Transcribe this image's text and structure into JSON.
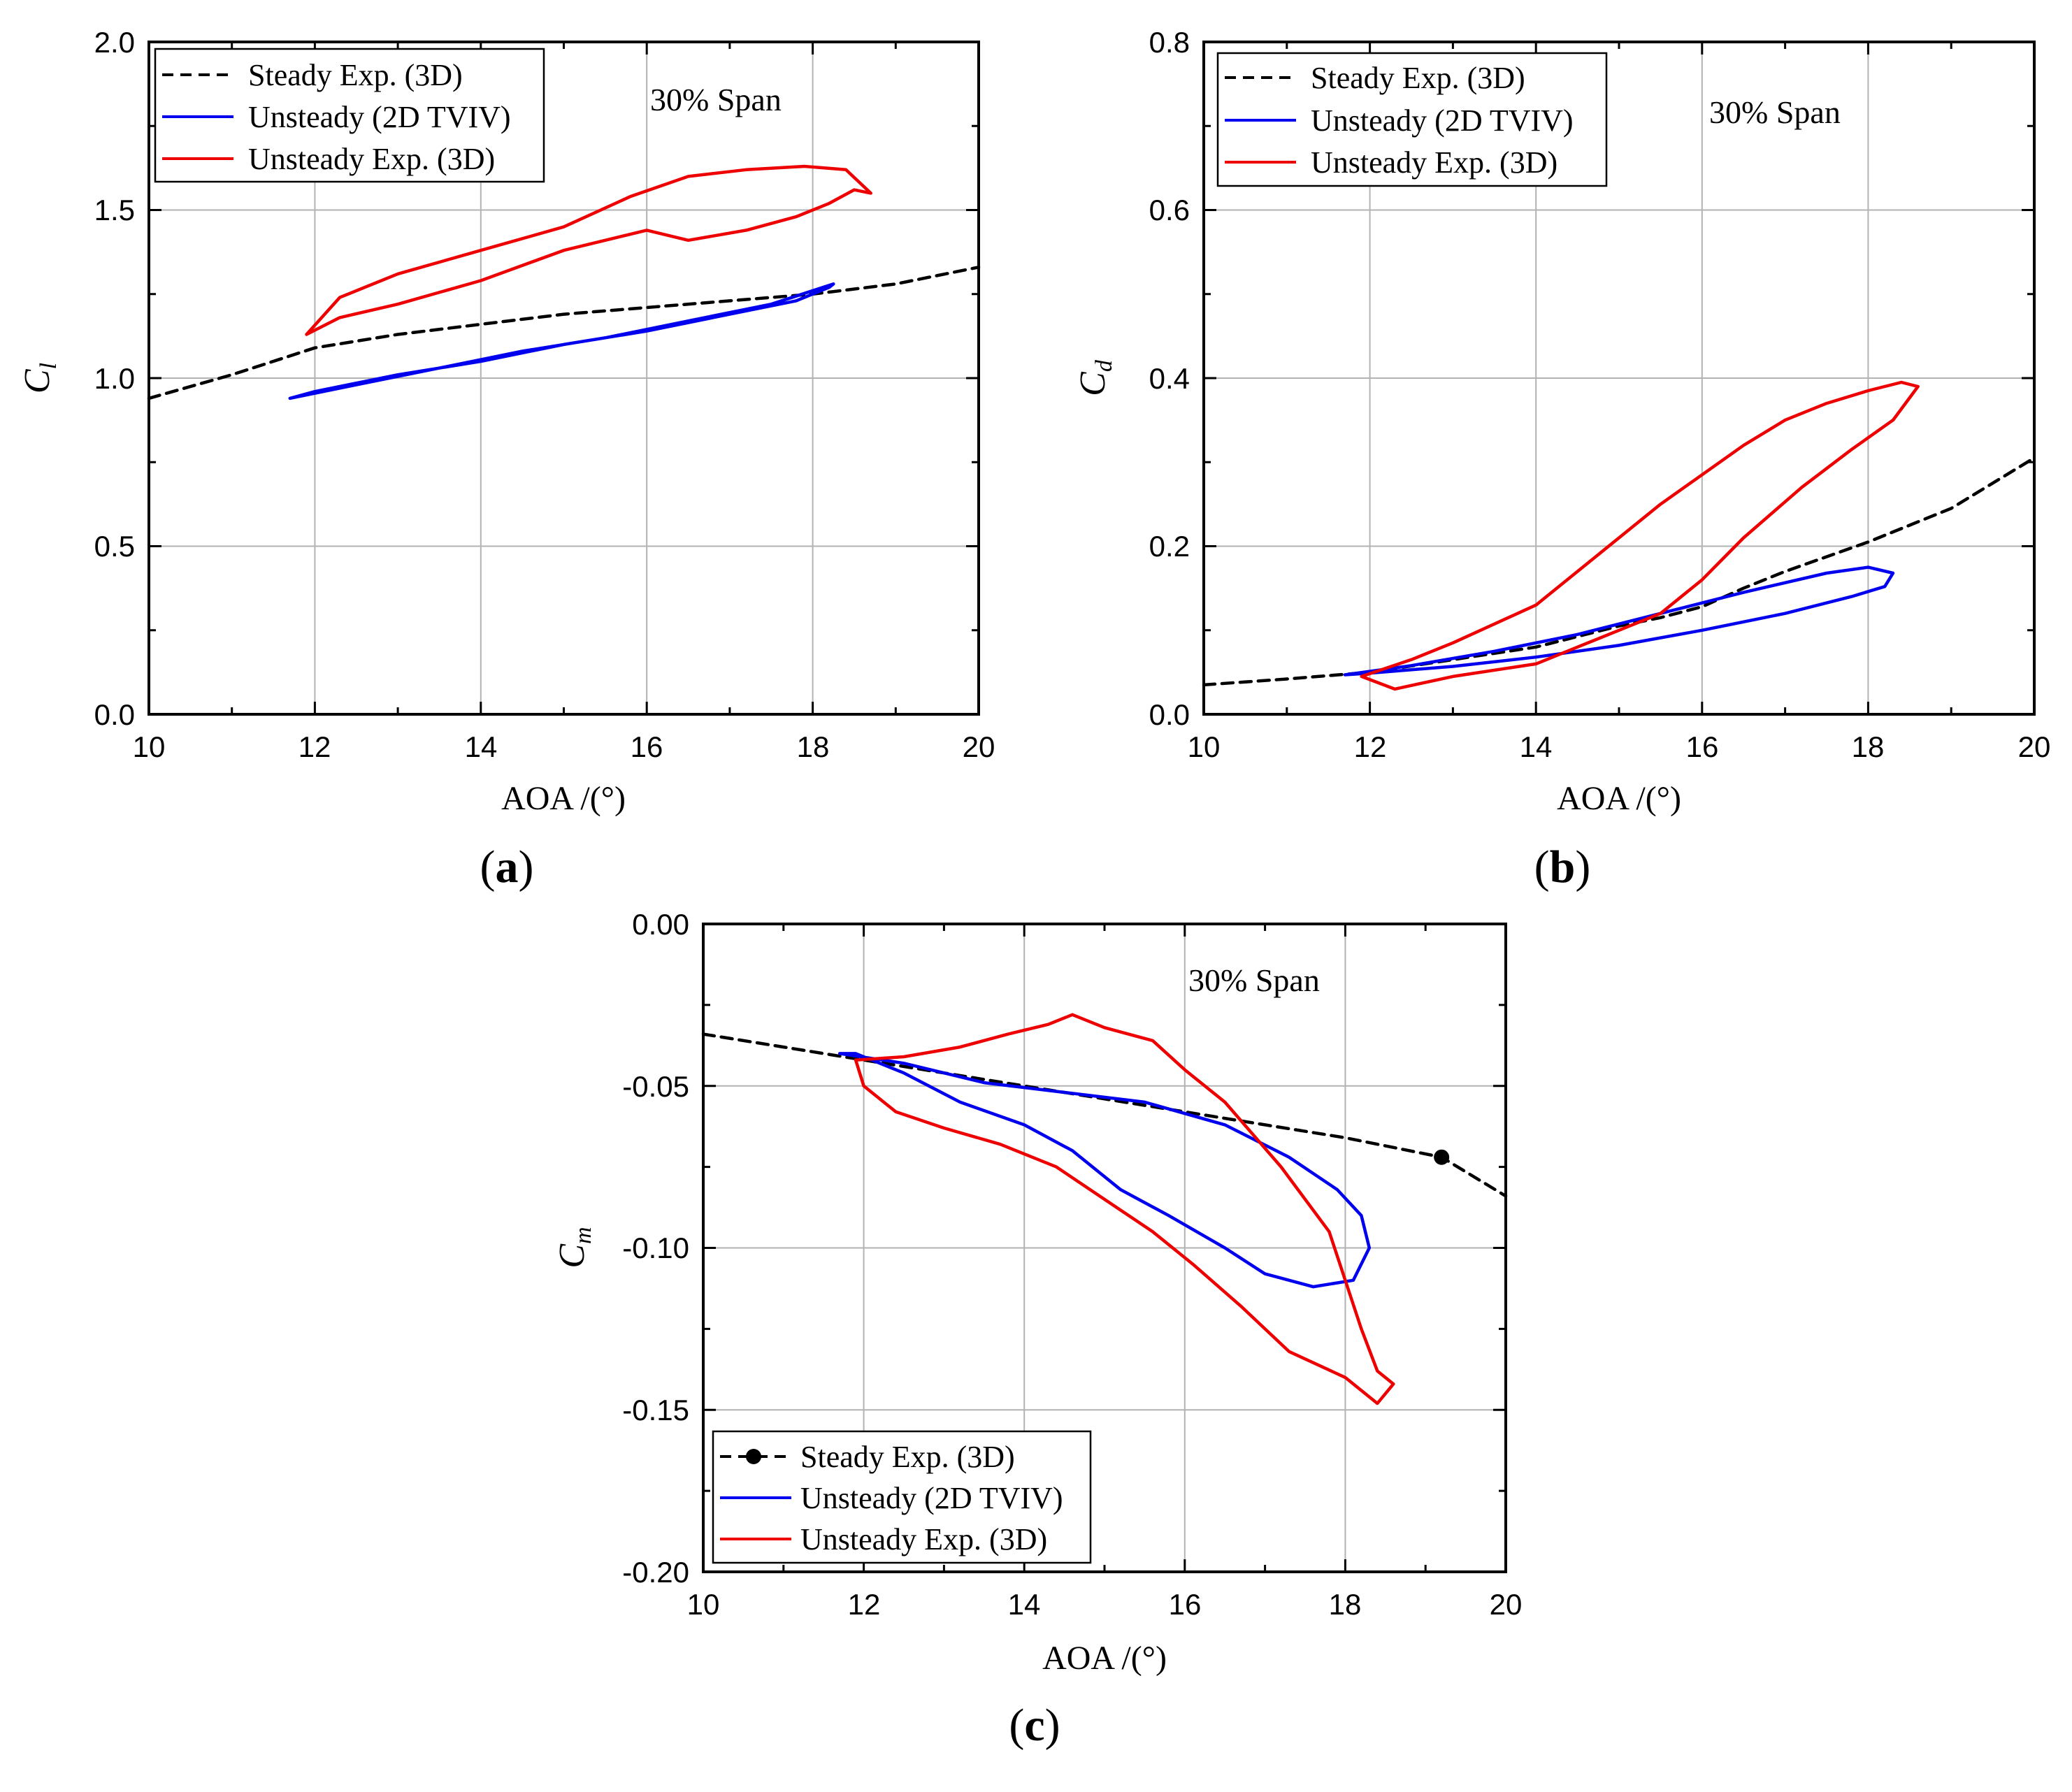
{
  "chart_data": [
    {
      "id": "a",
      "type": "line",
      "panel_label": {
        "open": "(",
        "letter": "a",
        "close": ")"
      },
      "xlabel": "AOA /(°)",
      "ylabel": {
        "main": "C",
        "sub": "l"
      },
      "annotation": "30% Span",
      "xlim": [
        10,
        20
      ],
      "ylim": [
        0.0,
        2.0
      ],
      "xticks": [
        "10",
        "12",
        "14",
        "16",
        "18",
        "20"
      ],
      "yticks": [
        "0.0",
        "0.5",
        "1.0",
        "1.5",
        "2.0"
      ],
      "grid": true,
      "legend_position": "top-left",
      "series": [
        {
          "name": "Steady Exp. (3D)",
          "style": "dashed",
          "color": "#000000",
          "marker": false,
          "x": [
            10.0,
            11.0,
            12.0,
            13.0,
            14.0,
            15.0,
            16.0,
            17.0,
            18.0,
            19.0,
            20.0
          ],
          "y": [
            0.94,
            1.01,
            1.09,
            1.13,
            1.16,
            1.19,
            1.21,
            1.23,
            1.25,
            1.28,
            1.33
          ]
        },
        {
          "name": "Unsteady (2D TVIV)",
          "style": "solid",
          "color": "#0000ee",
          "marker": false,
          "x": [
            11.7,
            12.5,
            13.5,
            14.5,
            15.5,
            16.5,
            17.5,
            18.0,
            18.25,
            18.2,
            17.8,
            17.0,
            16.0,
            15.0,
            14.0,
            13.0,
            12.0,
            11.7
          ],
          "y": [
            0.94,
            0.98,
            1.03,
            1.08,
            1.12,
            1.17,
            1.22,
            1.26,
            1.28,
            1.27,
            1.23,
            1.19,
            1.14,
            1.1,
            1.05,
            1.01,
            0.96,
            0.94
          ]
        },
        {
          "name": "Unsteady Exp. (3D)",
          "style": "solid",
          "color": "#ee0000",
          "marker": false,
          "x": [
            11.9,
            12.3,
            13.0,
            14.0,
            15.0,
            16.0,
            16.5,
            17.2,
            17.8,
            18.2,
            18.5,
            18.7,
            18.4,
            17.9,
            17.2,
            16.5,
            15.8,
            15.0,
            14.0,
            13.0,
            12.3,
            11.9
          ],
          "y": [
            1.13,
            1.18,
            1.22,
            1.29,
            1.38,
            1.44,
            1.41,
            1.44,
            1.48,
            1.52,
            1.56,
            1.55,
            1.62,
            1.63,
            1.62,
            1.6,
            1.54,
            1.45,
            1.38,
            1.31,
            1.24,
            1.13
          ]
        }
      ]
    },
    {
      "id": "b",
      "type": "line",
      "panel_label": {
        "open": "(",
        "letter": "b",
        "close": ")"
      },
      "xlabel": "AOA /(°)",
      "ylabel": {
        "main": "C",
        "sub": "d"
      },
      "annotation": "30% Span",
      "xlim": [
        10,
        20
      ],
      "ylim": [
        0.0,
        0.8
      ],
      "xticks": [
        "10",
        "12",
        "14",
        "16",
        "18",
        "20"
      ],
      "yticks": [
        "0.0",
        "0.2",
        "0.4",
        "0.6",
        "0.8"
      ],
      "grid": true,
      "legend_position": "top-left",
      "series": [
        {
          "name": "Steady Exp. (3D)",
          "style": "dashed",
          "color": "#000000",
          "marker": false,
          "x": [
            10.0,
            11.0,
            12.0,
            13.0,
            14.0,
            15.0,
            15.5,
            16.0,
            16.5,
            17.0,
            18.0,
            19.0,
            20.0
          ],
          "y": [
            0.035,
            0.042,
            0.05,
            0.065,
            0.08,
            0.105,
            0.115,
            0.128,
            0.15,
            0.17,
            0.205,
            0.245,
            0.305
          ]
        },
        {
          "name": "Unsteady (2D TVIV)",
          "style": "solid",
          "color": "#0000ee",
          "marker": false,
          "x": [
            11.7,
            12.5,
            13.5,
            14.5,
            15.5,
            16.5,
            17.5,
            18.0,
            18.3,
            18.2,
            17.8,
            17.0,
            16.0,
            15.0,
            14.0,
            13.0,
            12.0,
            11.7
          ],
          "y": [
            0.047,
            0.058,
            0.075,
            0.095,
            0.12,
            0.145,
            0.168,
            0.175,
            0.168,
            0.152,
            0.14,
            0.12,
            0.1,
            0.082,
            0.068,
            0.057,
            0.049,
            0.047
          ]
        },
        {
          "name": "Unsteady Exp. (3D)",
          "style": "solid",
          "color": "#ee0000",
          "marker": false,
          "x": [
            11.9,
            12.5,
            13.0,
            14.0,
            14.5,
            15.0,
            15.5,
            16.0,
            16.5,
            17.0,
            17.5,
            18.0,
            18.4,
            18.6,
            18.3,
            17.8,
            17.2,
            16.5,
            16.0,
            15.5,
            15.0,
            14.5,
            14.0,
            13.0,
            12.3,
            11.9
          ],
          "y": [
            0.045,
            0.065,
            0.085,
            0.13,
            0.17,
            0.21,
            0.25,
            0.285,
            0.32,
            0.35,
            0.37,
            0.385,
            0.395,
            0.39,
            0.35,
            0.315,
            0.27,
            0.21,
            0.16,
            0.12,
            0.1,
            0.08,
            0.06,
            0.045,
            0.03,
            0.045
          ]
        }
      ]
    },
    {
      "id": "c",
      "type": "line",
      "panel_label": {
        "open": "(",
        "letter": "c",
        "close": ")"
      },
      "xlabel": "AOA /(°)",
      "ylabel": {
        "main": "C",
        "sub": "m"
      },
      "annotation": "30% Span",
      "xlim": [
        10,
        20
      ],
      "ylim": [
        -0.2,
        0.0
      ],
      "xticks": [
        "10",
        "12",
        "14",
        "16",
        "18",
        "20"
      ],
      "yticks": [
        "-0.20",
        "-0.15",
        "-0.10",
        "-0.05",
        "0.00"
      ],
      "grid": true,
      "legend_position": "bottom-left",
      "series": [
        {
          "name": "Steady Exp. (3D)",
          "style": "dashed",
          "color": "#000000",
          "marker": true,
          "marker_x": [
            19.2
          ],
          "marker_y": [
            -0.072
          ],
          "x": [
            10.0,
            11.0,
            12.0,
            13.0,
            14.0,
            15.0,
            16.0,
            17.0,
            18.0,
            19.2,
            20.0
          ],
          "y": [
            -0.034,
            -0.038,
            -0.042,
            -0.046,
            -0.05,
            -0.054,
            -0.058,
            -0.062,
            -0.066,
            -0.072,
            -0.084
          ]
        },
        {
          "name": "Unsteady (2D TVIV)",
          "style": "solid",
          "color": "#0000ee",
          "marker": false,
          "x": [
            11.7,
            12.5,
            13.5,
            14.5,
            15.5,
            16.5,
            17.3,
            17.9,
            18.2,
            18.3,
            18.1,
            17.6,
            17.0,
            16.5,
            15.8,
            15.2,
            14.6,
            14.0,
            13.2,
            12.5,
            11.9,
            11.7
          ],
          "y": [
            -0.04,
            -0.043,
            -0.049,
            -0.052,
            -0.055,
            -0.062,
            -0.072,
            -0.082,
            -0.09,
            -0.1,
            -0.11,
            -0.112,
            -0.108,
            -0.1,
            -0.09,
            -0.082,
            -0.07,
            -0.062,
            -0.055,
            -0.046,
            -0.04,
            -0.04
          ]
        },
        {
          "name": "Unsteady Exp. (3D)",
          "style": "solid",
          "color": "#ee0000",
          "marker": false,
          "x": [
            11.9,
            12.5,
            13.2,
            13.8,
            14.3,
            14.6,
            15.0,
            15.6,
            16.0,
            16.5,
            17.2,
            17.8,
            18.0,
            18.2,
            18.4,
            18.6,
            18.4,
            18.0,
            17.3,
            16.7,
            16.1,
            15.6,
            15.0,
            14.4,
            13.7,
            13.0,
            12.4,
            12.0,
            11.9
          ],
          "y": [
            -0.042,
            -0.041,
            -0.038,
            -0.034,
            -0.031,
            -0.028,
            -0.032,
            -0.036,
            -0.045,
            -0.055,
            -0.075,
            -0.095,
            -0.11,
            -0.125,
            -0.138,
            -0.142,
            -0.148,
            -0.14,
            -0.132,
            -0.118,
            -0.105,
            -0.095,
            -0.085,
            -0.075,
            -0.068,
            -0.063,
            -0.058,
            -0.05,
            -0.042
          ]
        }
      ]
    }
  ]
}
